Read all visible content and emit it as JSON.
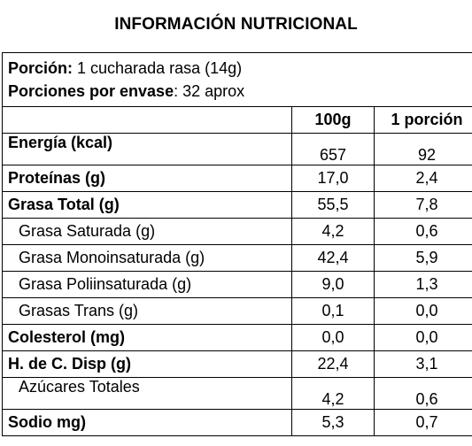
{
  "title": "INFORMACIÓN NUTRICIONAL",
  "portion_label": "Porción:",
  "portion_value": " 1 cucharada rasa (14g)",
  "servings_label": "Porciones por envase",
  "servings_value": ": 32 aprox",
  "headers": [
    "100g",
    "1 porción"
  ],
  "rows": [
    {
      "label": "Energía (kcal)",
      "per100": "657",
      "portion": "92"
    },
    {
      "label": "Proteínas (g)",
      "per100": "17,0",
      "portion": "2,4"
    },
    {
      "label": "Grasa Total (g)",
      "per100": "55,5",
      "portion": "7,8"
    },
    {
      "label": "Grasa Saturada (g)",
      "per100": "4,2",
      "portion": "0,6"
    },
    {
      "label": "Grasa Monoinsaturada (g)",
      "per100": "42,4",
      "portion": "5,9"
    },
    {
      "label": "Grasa Poliinsaturada (g)",
      "per100": "9,0",
      "portion": "1,3"
    },
    {
      "label": "Grasas Trans (g)",
      "per100": "0,1",
      "portion": "0,0"
    },
    {
      "label": "Colesterol (mg)",
      "per100": "0,0",
      "portion": "0,0"
    },
    {
      "label": "H. de C. Disp (g)",
      "per100": "22,4",
      "portion": "3,1"
    },
    {
      "label": "Azúcares Totales",
      "per100": "4,2",
      "portion": "0,6"
    },
    {
      "label": "Sodio mg)",
      "per100": "5,3",
      "portion": "0,7"
    }
  ]
}
